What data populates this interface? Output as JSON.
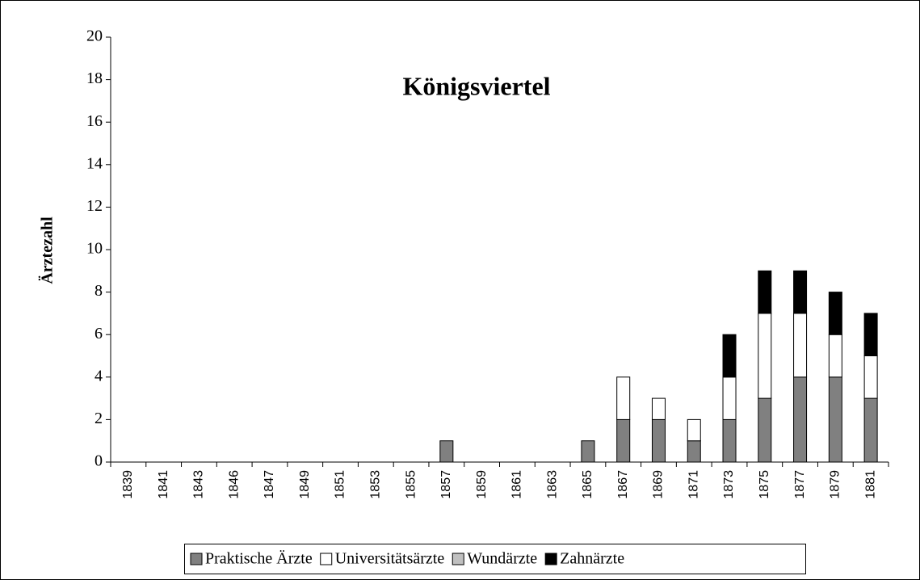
{
  "chart_data": {
    "type": "stacked_bar",
    "title": "Königsviertel",
    "y_label": "Ärztezahl",
    "categories": [
      "1839",
      "1841",
      "1843",
      "1846",
      "1847",
      "1849",
      "1851",
      "1853",
      "1855",
      "1857",
      "1859",
      "1861",
      "1863",
      "1865",
      "1867",
      "1869",
      "1871",
      "1873",
      "1875",
      "1877",
      "1879",
      "1881"
    ],
    "series": [
      {
        "name": "Praktische Ärzte",
        "color": "#808080",
        "values": [
          0,
          0,
          0,
          0,
          0,
          0,
          0,
          0,
          0,
          1,
          0,
          0,
          0,
          1,
          2,
          2,
          1,
          2,
          3,
          4,
          4,
          3
        ]
      },
      {
        "name": "Universitätsärzte",
        "color": "#ffffff",
        "values": [
          0,
          0,
          0,
          0,
          0,
          0,
          0,
          0,
          0,
          0,
          0,
          0,
          0,
          0,
          2,
          1,
          1,
          2,
          4,
          3,
          2,
          2
        ]
      },
      {
        "name": "Wundärzte",
        "color": "#c0c0c0",
        "values": [
          0,
          0,
          0,
          0,
          0,
          0,
          0,
          0,
          0,
          0,
          0,
          0,
          0,
          0,
          0,
          0,
          0,
          0,
          0,
          0,
          0,
          0
        ]
      },
      {
        "name": "Zahnärzte",
        "color": "#000000",
        "values": [
          0,
          0,
          0,
          0,
          0,
          0,
          0,
          0,
          0,
          0,
          0,
          0,
          0,
          0,
          0,
          0,
          0,
          2,
          2,
          2,
          2,
          2
        ]
      }
    ],
    "ylim": [
      0,
      20
    ],
    "yticks": [
      0,
      2,
      4,
      6,
      8,
      10,
      12,
      14,
      16,
      18,
      20
    ],
    "grid": false,
    "legend": "bottom"
  }
}
